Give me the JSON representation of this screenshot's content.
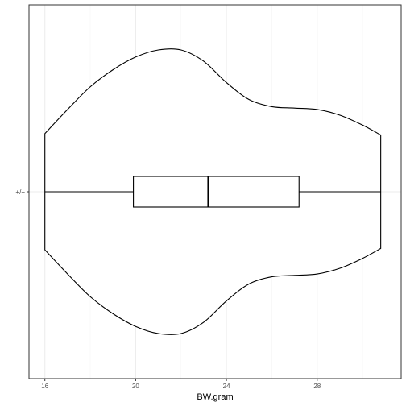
{
  "chart_data": {
    "type": "violin",
    "orientation": "horizontal",
    "xlabel": "BW.gram",
    "ylabel": "",
    "title": "",
    "xlim": [
      15.3,
      31.7
    ],
    "x_ticks": [
      16,
      20,
      24,
      28
    ],
    "x_minor_ticks": [
      18,
      22,
      26,
      30
    ],
    "categories": [
      "+/+"
    ],
    "violin": {
      "group": "+/+",
      "min": 16.0,
      "max": 30.8,
      "density_profile": [
        [
          16.0,
          0.41
        ],
        [
          17.0,
          0.58
        ],
        [
          18.0,
          0.74
        ],
        [
          19.0,
          0.86
        ],
        [
          20.0,
          0.95
        ],
        [
          21.0,
          1.0
        ],
        [
          22.0,
          1.0
        ],
        [
          23.0,
          0.92
        ],
        [
          24.0,
          0.77
        ],
        [
          25.0,
          0.65
        ],
        [
          26.0,
          0.6
        ],
        [
          27.0,
          0.59
        ],
        [
          28.0,
          0.58
        ],
        [
          29.0,
          0.54
        ],
        [
          30.0,
          0.47
        ],
        [
          30.8,
          0.4
        ]
      ]
    },
    "boxplot": {
      "group": "+/+",
      "whisker_low": 16.0,
      "q1": 19.9,
      "median": 23.2,
      "q3": 27.2,
      "whisker_high": 30.8
    },
    "grid": true,
    "theme": "bw",
    "colors": {
      "outline": "#000000",
      "fill": "#ffffff",
      "grid_major": "#ebebeb",
      "grid_minor": "#f5f5f5",
      "panel_border": "#333333",
      "tick_text": "#4d4d4d"
    }
  }
}
